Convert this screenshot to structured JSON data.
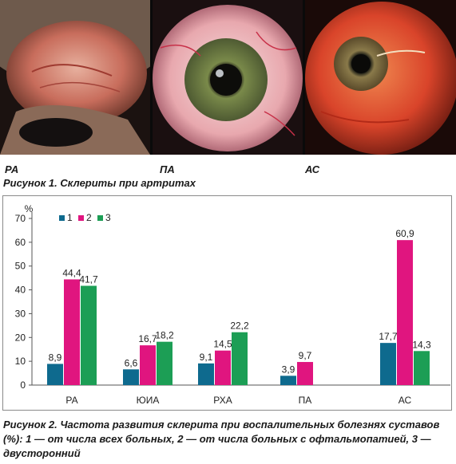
{
  "figure1": {
    "photos": [
      {
        "label": "РА"
      },
      {
        "label": "ПА"
      },
      {
        "label": "АС"
      }
    ],
    "caption": "Рисунок 1. Склериты при артритах"
  },
  "chart_data": {
    "type": "bar",
    "title": "",
    "xlabel": "",
    "ylabel": "%",
    "ylim": [
      0,
      70
    ],
    "yticks": [
      0,
      10,
      20,
      30,
      40,
      50,
      60,
      70
    ],
    "grid": false,
    "legend_position": "top-left",
    "categories": [
      "РА",
      "ЮИА",
      "РХА",
      "ПА",
      "АС"
    ],
    "series": [
      {
        "name": "1",
        "color": "#0e6a8e",
        "values": [
          8.9,
          6.6,
          9.1,
          3.9,
          17.7
        ],
        "labels": [
          "8,9",
          "6,6",
          "9,1",
          "3,9",
          "17,7"
        ]
      },
      {
        "name": "2",
        "color": "#e0157f",
        "values": [
          44.4,
          16.7,
          14.5,
          9.7,
          60.9
        ],
        "labels": [
          "44,4",
          "16,7",
          "14,5",
          "9,7",
          "60,9"
        ]
      },
      {
        "name": "3",
        "color": "#1c9e55",
        "values": [
          41.7,
          18.2,
          22.2,
          null,
          14.3
        ],
        "labels": [
          "41,7",
          "18,2",
          "22,2",
          "",
          "14,3"
        ]
      }
    ]
  },
  "figure2": {
    "caption": "Рисунок 2. Частота развития склерита при воспалительных болезнях суставов (%): 1 — от числа всех больных, 2 — от числа больных с офтальмопатией, 3 — двусторонний"
  }
}
